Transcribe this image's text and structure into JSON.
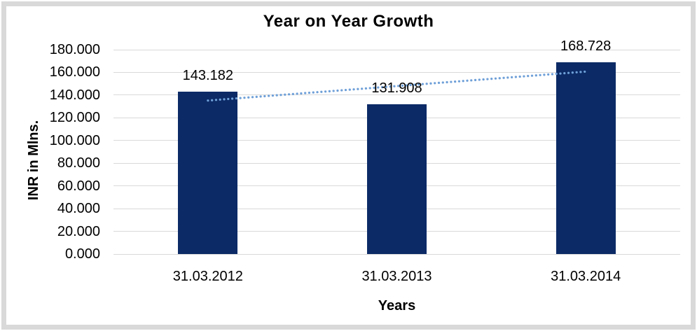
{
  "window": {
    "background_color": "#ffffff",
    "frame_color": "#d9d9d9"
  },
  "chart_data": {
    "type": "bar",
    "title": "Year on Year Growth",
    "xlabel": "Years",
    "ylabel": "INR in Mlns.",
    "categories": [
      "31.03.2012",
      "31.03.2013",
      "31.03.2014"
    ],
    "values": [
      143.182,
      131.908,
      168.728
    ],
    "data_labels": [
      "143.182",
      "131.908",
      "168.728"
    ],
    "ylim": [
      0,
      180
    ],
    "ytick_step": 20,
    "ytick_labels": [
      "0.000",
      "20.000",
      "40.000",
      "60.000",
      "80.000",
      "100.000",
      "120.000",
      "140.000",
      "160.000",
      "180.000"
    ],
    "grid": "horizontal",
    "gridline_color": "#d9d9d9",
    "legend": "none",
    "bar_color": "#0b2a66",
    "text_color": "#000000",
    "trendline": {
      "type": "linear",
      "style": "dotted",
      "color": "#6fa0d8",
      "endpoint_values": [
        135.2,
        160.7
      ]
    }
  }
}
